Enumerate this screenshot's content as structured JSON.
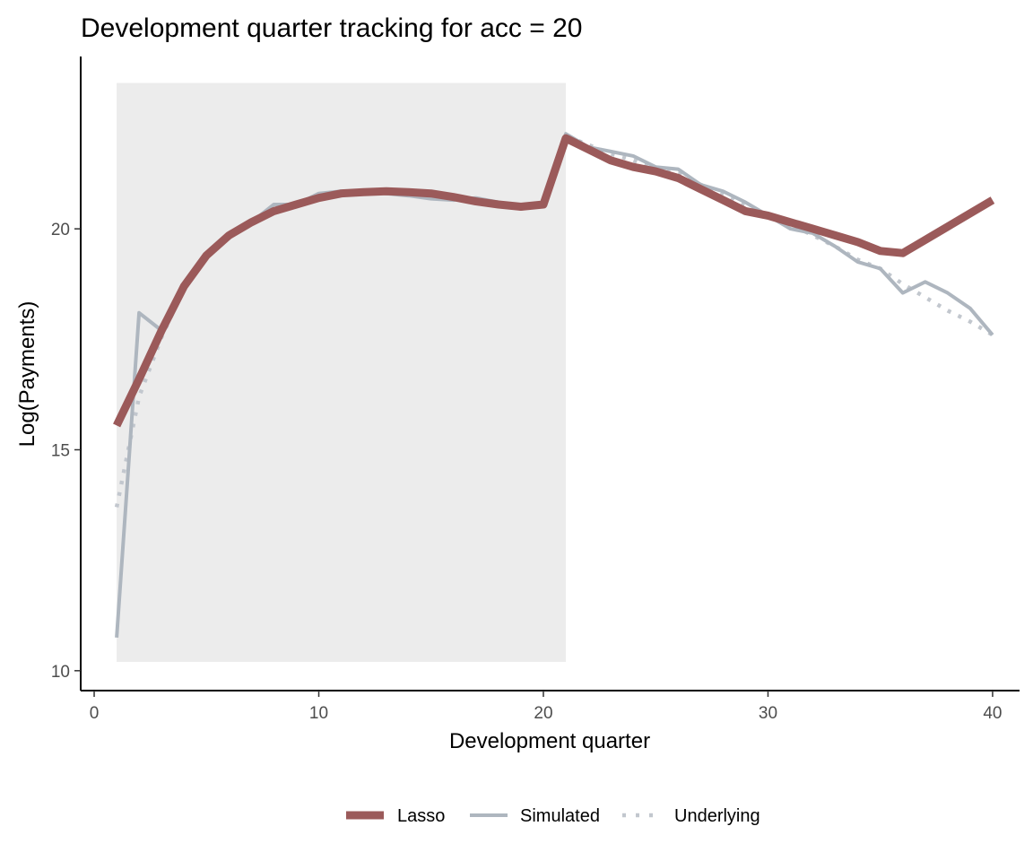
{
  "chart_data": {
    "type": "line",
    "title": "Development quarter tracking for acc = 20",
    "xlabel": "Development quarter",
    "ylabel": "Log(Payments)",
    "xlim": [
      -0.6,
      41.2
    ],
    "ylim": [
      9.55,
      23.9
    ],
    "x_ticks": [
      0,
      10,
      20,
      30,
      40
    ],
    "y_ticks": [
      10,
      15,
      20
    ],
    "grid": false,
    "legend_position": "bottom",
    "shaded_region": {
      "x": [
        1,
        21
      ],
      "y": [
        10.2,
        23.3
      ],
      "color": "#ececec"
    },
    "colors": {
      "Lasso": "#9b5a5a",
      "Simulated": "#aeb6bf",
      "Underlying": "#c2c7ce"
    },
    "series": [
      {
        "name": "Lasso",
        "style": "solid-thick",
        "x": [
          1,
          2,
          3,
          4,
          5,
          6,
          7,
          8,
          9,
          10,
          11,
          12,
          13,
          14,
          15,
          16,
          17,
          18,
          19,
          20,
          21,
          22,
          23,
          24,
          25,
          26,
          27,
          28,
          29,
          30,
          31,
          32,
          33,
          34,
          35,
          36,
          37,
          38,
          39,
          40
        ],
        "values": [
          15.55,
          16.6,
          17.7,
          18.7,
          19.4,
          19.85,
          20.15,
          20.4,
          20.55,
          20.7,
          20.8,
          20.83,
          20.85,
          20.83,
          20.8,
          20.72,
          20.62,
          20.55,
          20.5,
          20.55,
          22.05,
          21.8,
          21.55,
          21.4,
          21.3,
          21.15,
          20.9,
          20.65,
          20.4,
          20.3,
          20.15,
          20.0,
          19.85,
          19.7,
          19.5,
          19.45,
          19.75,
          20.05,
          20.35,
          20.65
        ]
      },
      {
        "name": "Simulated",
        "style": "solid",
        "x": [
          1,
          2,
          3,
          4,
          5,
          6,
          7,
          8,
          9,
          10,
          11,
          12,
          13,
          14,
          15,
          16,
          17,
          18,
          19,
          20,
          21,
          22,
          23,
          24,
          25,
          26,
          27,
          28,
          29,
          30,
          31,
          32,
          33,
          34,
          35,
          36,
          37,
          38,
          39,
          40
        ],
        "values": [
          10.75,
          18.1,
          17.7,
          18.65,
          19.45,
          19.9,
          20.15,
          20.55,
          20.55,
          20.8,
          20.85,
          20.85,
          20.8,
          20.75,
          20.68,
          20.65,
          20.7,
          20.6,
          20.45,
          20.55,
          22.15,
          21.85,
          21.75,
          21.65,
          21.4,
          21.35,
          21.0,
          20.85,
          20.6,
          20.3,
          20.0,
          19.9,
          19.6,
          19.25,
          19.1,
          18.55,
          18.8,
          18.55,
          18.2,
          17.6
        ]
      },
      {
        "name": "Underlying",
        "style": "dotted",
        "x": [
          1,
          2,
          3,
          4,
          5,
          6,
          7,
          8,
          9,
          10,
          11,
          12,
          13,
          14,
          15,
          16,
          17,
          18,
          19,
          20,
          21,
          22,
          23,
          24,
          25,
          26,
          27,
          28,
          29,
          30,
          31,
          32,
          33,
          34,
          35,
          36,
          37,
          38,
          39,
          40
        ],
        "values": [
          13.7,
          16.2,
          17.55,
          18.65,
          19.4,
          19.85,
          20.15,
          20.45,
          20.55,
          20.75,
          20.85,
          20.85,
          20.85,
          20.8,
          20.75,
          20.7,
          20.68,
          20.6,
          20.5,
          20.55,
          22.1,
          21.9,
          21.7,
          21.55,
          21.35,
          21.25,
          21.0,
          20.8,
          20.55,
          20.3,
          20.1,
          19.85,
          19.6,
          19.3,
          19.1,
          18.75,
          18.45,
          18.15,
          17.9,
          17.6
        ]
      }
    ]
  }
}
